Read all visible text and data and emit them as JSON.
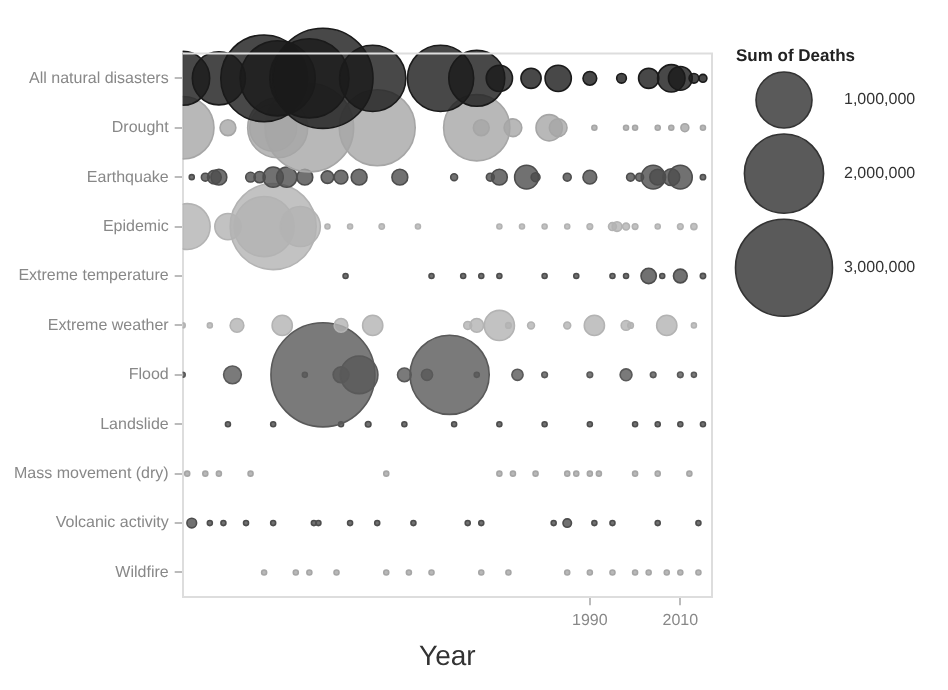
{
  "chart_data": {
    "type": "bubble",
    "orientation": "horizontal",
    "xlabel": "Year",
    "legend_title": "Sum of Deaths",
    "size_legend": [
      {
        "value": 1000000,
        "label": "1,000,000"
      },
      {
        "value": 2000000,
        "label": "2,000,000"
      },
      {
        "value": 3000000,
        "label": "3,000,000"
      }
    ],
    "categories": [
      "All natural disasters",
      "Drought",
      "Earthquake",
      "Epidemic",
      "Extreme temperature",
      "Extreme weather",
      "Flood",
      "Landslide",
      "Mass movement (dry)",
      "Volcanic activity",
      "Wildfire"
    ],
    "xlim": [
      1900,
      2017
    ],
    "xticks": [
      1990,
      2010
    ],
    "grid": false,
    "series": [
      {
        "color": "#1a1a1a",
        "values": [
          1900,
          1908,
          1918,
          1921,
          1928,
          1931,
          1942,
          1957,
          1965,
          1970,
          1977,
          1983,
          1990,
          1997,
          2003,
          2008,
          2010,
          2013,
          2015
        ],
        "sizes": [
          930000,
          900000,
          2400000,
          1800000,
          2000000,
          3200000,
          1400000,
          1400000,
          1000000,
          220000,
          130000,
          220000,
          60000,
          30000,
          130000,
          240000,
          180000,
          30000,
          20000
        ],
        "x": [
          "All natural disasters",
          "All natural disasters",
          "All natural disasters",
          "All natural disasters",
          "All natural disasters",
          "All natural disasters",
          "All natural disasters",
          "All natural disasters",
          "All natural disasters",
          "All natural disasters",
          "All natural disasters",
          "All natural disasters",
          "All natural disasters",
          "All natural disasters",
          "All natural disasters",
          "All natural disasters",
          "All natural disasters",
          "All natural disasters",
          "All natural disasters"
        ]
      },
      {
        "color": "#a6a6a6",
        "values": [
          1900,
          1910,
          1920,
          1921,
          1928,
          1943,
          1965,
          1966,
          1973,
          1981,
          1983,
          1991,
          1998,
          2000,
          2005,
          2008,
          2011,
          2015
        ],
        "sizes": [
          1250000,
          80000,
          700000,
          1150000,
          2500000,
          1840000,
          1400000,
          80000,
          100000,
          220000,
          100000,
          8000,
          8000,
          8000,
          8000,
          8000,
          20000,
          8000
        ],
        "x": [
          "Drought",
          "Drought",
          "Drought",
          "Drought",
          "Drought",
          "Drought",
          "Drought",
          "Drought",
          "Drought",
          "Drought",
          "Drought",
          "Drought",
          "Drought",
          "Drought",
          "Drought",
          "Drought",
          "Drought",
          "Drought"
        ]
      },
      {
        "color": "#4d4d4d",
        "values": [
          1902,
          1905,
          1907,
          1908,
          1915,
          1917,
          1920,
          1923,
          1927,
          1932,
          1935,
          1939,
          1948,
          1960,
          1968,
          1970,
          1976,
          1978,
          1985,
          1990,
          1999,
          2001,
          2004,
          2005,
          2008,
          2010,
          2015
        ],
        "sizes": [
          8000,
          20000,
          60000,
          80000,
          30000,
          40000,
          130000,
          130000,
          80000,
          50000,
          60000,
          80000,
          80000,
          15000,
          20000,
          80000,
          180000,
          25000,
          20000,
          60000,
          20000,
          20000,
          180000,
          80000,
          90000,
          180000,
          9000
        ],
        "x": [
          "Earthquake",
          "Earthquake",
          "Earthquake",
          "Earthquake",
          "Earthquake",
          "Earthquake",
          "Earthquake",
          "Earthquake",
          "Earthquake",
          "Earthquake",
          "Earthquake",
          "Earthquake",
          "Earthquake",
          "Earthquake",
          "Earthquake",
          "Earthquake",
          "Earthquake",
          "Earthquake",
          "Earthquake",
          "Earthquake",
          "Earthquake",
          "Earthquake",
          "Earthquake",
          "Earthquake",
          "Earthquake",
          "Earthquake",
          "Earthquake"
        ]
      },
      {
        "color": "#b3b3b3",
        "values": [
          1901,
          1910,
          1918,
          1920,
          1926,
          1932,
          1937,
          1944,
          1952,
          1970,
          1975,
          1980,
          1985,
          1990,
          1995,
          1996,
          1998,
          2000,
          2005,
          2010,
          2013
        ],
        "sizes": [
          670000,
          220000,
          1150000,
          2360000,
          510000,
          8000,
          8000,
          9000,
          8000,
          8000,
          8000,
          8000,
          8000,
          10000,
          20000,
          30000,
          15000,
          10000,
          8000,
          10000,
          12000
        ],
        "x": [
          "Epidemic",
          "Epidemic",
          "Epidemic",
          "Epidemic",
          "Epidemic",
          "Epidemic",
          "Epidemic",
          "Epidemic",
          "Epidemic",
          "Epidemic",
          "Epidemic",
          "Epidemic",
          "Epidemic",
          "Epidemic",
          "Epidemic",
          "Epidemic",
          "Epidemic",
          "Epidemic",
          "Epidemic",
          "Epidemic",
          "Epidemic"
        ]
      },
      {
        "color": "#4d4d4d",
        "values": [
          1936,
          1955,
          1962,
          1966,
          1970,
          1980,
          1987,
          1995,
          1998,
          2003,
          2006,
          2010,
          2015
        ],
        "sizes": [
          8000,
          8000,
          8000,
          8000,
          8000,
          8000,
          8000,
          8000,
          8000,
          75000,
          8000,
          60000,
          9000
        ],
        "x": [
          "Extreme temperature",
          "Extreme temperature",
          "Extreme temperature",
          "Extreme temperature",
          "Extreme temperature",
          "Extreme temperature",
          "Extreme temperature",
          "Extreme temperature",
          "Extreme temperature",
          "Extreme temperature",
          "Extreme temperature",
          "Extreme temperature",
          "Extreme temperature"
        ]
      },
      {
        "color": "#b3b3b3",
        "values": [
          1900,
          1906,
          1912,
          1922,
          1935,
          1942,
          1963,
          1965,
          1970,
          1972,
          1977,
          1985,
          1991,
          1998,
          1999,
          2007,
          2013
        ],
        "sizes": [
          8000,
          8000,
          60000,
          130000,
          60000,
          130000,
          20000,
          60000,
          290000,
          10000,
          15000,
          15000,
          130000,
          30000,
          10000,
          130000,
          8000
        ],
        "x": [
          "Extreme weather",
          "Extreme weather",
          "Extreme weather",
          "Extreme weather",
          "Extreme weather",
          "Extreme weather",
          "Extreme weather",
          "Extreme weather",
          "Extreme weather",
          "Extreme weather",
          "Extreme weather",
          "Extreme weather",
          "Extreme weather",
          "Extreme weather",
          "Extreme weather",
          "Extreme weather",
          "Extreme weather"
        ]
      },
      {
        "color": "#595959",
        "values": [
          1900,
          1911,
          1927,
          1931,
          1935,
          1939,
          1949,
          1954,
          1959,
          1965,
          1974,
          1980,
          1990,
          1998,
          2004,
          2010,
          2013
        ],
        "sizes": [
          8000,
          100000,
          8000,
          3450000,
          80000,
          450000,
          60000,
          40000,
          2000000,
          8000,
          40000,
          10000,
          10000,
          45000,
          10000,
          10000,
          8000
        ],
        "x": [
          "Flood",
          "Flood",
          "Flood",
          "Flood",
          "Flood",
          "Flood",
          "Flood",
          "Flood",
          "Flood",
          "Flood",
          "Flood",
          "Flood",
          "Flood",
          "Flood",
          "Flood",
          "Flood",
          "Flood"
        ]
      },
      {
        "color": "#4d4d4d",
        "values": [
          1910,
          1920,
          1935,
          1941,
          1949,
          1960,
          1970,
          1980,
          1990,
          2000,
          2005,
          2010,
          2015
        ],
        "sizes": [
          8000,
          8000,
          8000,
          10000,
          8000,
          8000,
          8000,
          8000,
          8000,
          8000,
          8000,
          8000,
          8000
        ],
        "x": [
          "Landslide",
          "Landslide",
          "Landslide",
          "Landslide",
          "Landslide",
          "Landslide",
          "Landslide",
          "Landslide",
          "Landslide",
          "Landslide",
          "Landslide",
          "Landslide",
          "Landslide"
        ]
      },
      {
        "color": "#a6a6a6",
        "values": [
          1901,
          1905,
          1908,
          1915,
          1945,
          1970,
          1973,
          1978,
          1985,
          1987,
          1990,
          1992,
          2000,
          2005,
          2012
        ],
        "sizes": [
          8000,
          8000,
          8000,
          8000,
          8000,
          8000,
          8000,
          8000,
          8000,
          8000,
          8000,
          8000,
          8000,
          8000,
          8000
        ],
        "x": [
          "Mass movement (dry)",
          "Mass movement (dry)",
          "Mass movement (dry)",
          "Mass movement (dry)",
          "Mass movement (dry)",
          "Mass movement (dry)",
          "Mass movement (dry)",
          "Mass movement (dry)",
          "Mass movement (dry)",
          "Mass movement (dry)",
          "Mass movement (dry)",
          "Mass movement (dry)",
          "Mass movement (dry)",
          "Mass movement (dry)",
          "Mass movement (dry)"
        ]
      },
      {
        "color": "#4d4d4d",
        "values": [
          1902,
          1906,
          1909,
          1914,
          1920,
          1929,
          1930,
          1937,
          1943,
          1951,
          1963,
          1966,
          1982,
          1985,
          1991,
          1995,
          2005,
          2014
        ],
        "sizes": [
          30000,
          8000,
          8000,
          8000,
          8000,
          8000,
          8000,
          8000,
          8000,
          8000,
          8000,
          8000,
          8000,
          23000,
          8000,
          8000,
          8000,
          8000
        ],
        "x": [
          "Volcanic activity",
          "Volcanic activity",
          "Volcanic activity",
          "Volcanic activity",
          "Volcanic activity",
          "Volcanic activity",
          "Volcanic activity",
          "Volcanic activity",
          "Volcanic activity",
          "Volcanic activity",
          "Volcanic activity",
          "Volcanic activity",
          "Volcanic activity",
          "Volcanic activity",
          "Volcanic activity",
          "Volcanic activity",
          "Volcanic activity",
          "Volcanic activity"
        ]
      },
      {
        "color": "#a6a6a6",
        "values": [
          1918,
          1925,
          1928,
          1934,
          1945,
          1950,
          1955,
          1966,
          1972,
          1985,
          1990,
          1995,
          2000,
          2003,
          2007,
          2010,
          2014
        ],
        "sizes": [
          8000,
          8000,
          8000,
          8000,
          8000,
          8000,
          8000,
          8000,
          8000,
          8000,
          8000,
          8000,
          8000,
          8000,
          8000,
          8000,
          8000
        ],
        "x": [
          "Wildfire",
          "Wildfire",
          "Wildfire",
          "Wildfire",
          "Wildfire",
          "Wildfire",
          "Wildfire",
          "Wildfire",
          "Wildfire",
          "Wildfire",
          "Wildfire",
          "Wildfire",
          "Wildfire",
          "Wildfire",
          "Wildfire",
          "Wildfire",
          "Wildfire"
        ]
      }
    ]
  }
}
